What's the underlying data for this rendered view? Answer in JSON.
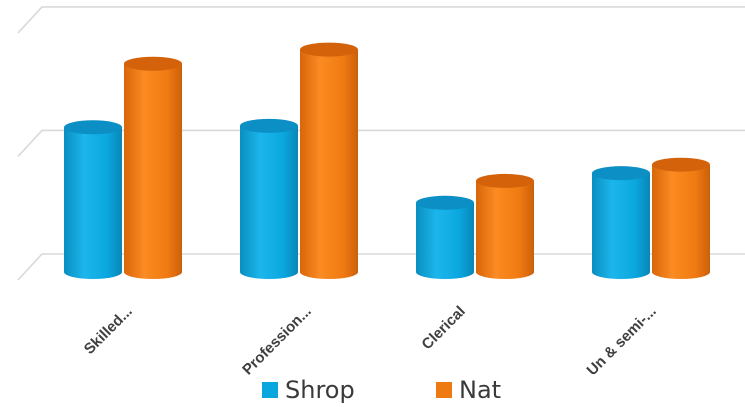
{
  "chart_data": {
    "type": "bar",
    "style": "3d-cylinder",
    "categories": [
      "Skilled...",
      "Profession...",
      "Clerical",
      "Un & semi-..."
    ],
    "series": [
      {
        "name": "Shrop",
        "color": "#0aa7de",
        "values": [
          20.5,
          20.7,
          9.8,
          14.0
        ]
      },
      {
        "name": "Nat",
        "color": "#f07a12",
        "values": [
          29.5,
          31.5,
          12.9,
          15.2
        ]
      }
    ],
    "ylim": [
      0,
      35
    ],
    "grid": true,
    "legend_position": "bottom",
    "title": "",
    "xlabel": "",
    "ylabel": ""
  }
}
